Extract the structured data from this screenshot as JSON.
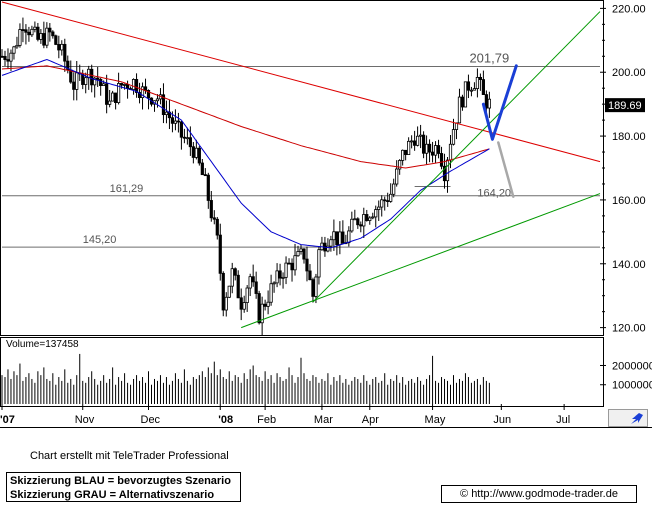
{
  "chart_data": {
    "type": "candlestick",
    "price_axis": {
      "ticks": [
        220,
        200,
        180,
        160,
        140,
        120
      ],
      "tick_labels": [
        "220.00",
        "200.00",
        "180.00",
        "160.00",
        "140.00",
        "120.00"
      ],
      "range": [
        118,
        222
      ],
      "last_price_label": "189.69"
    },
    "volume_axis": {
      "ticks": [
        2000000,
        1000000
      ],
      "tick_labels": [
        "2000000",
        "1000000"
      ],
      "range": [
        0,
        2700000
      ],
      "label": "Volume=137458"
    },
    "x_axis": {
      "labels": [
        "'07",
        "Nov",
        "Dec",
        "'08",
        "Feb",
        "Mar",
        "Apr",
        "May",
        "Jun",
        "Jul"
      ]
    },
    "annotations": [
      {
        "text": "201,79",
        "value": 201.79
      },
      {
        "text": "161,29",
        "value": 161.29
      },
      {
        "text": "145,20",
        "value": 145.2
      },
      {
        "text": "164,20",
        "value": 164.2
      }
    ],
    "horizontal_lines": [
      201.79,
      161.29,
      145.2,
      164.2
    ],
    "price_series_anchors": [
      {
        "x": 0,
        "y": 205
      },
      {
        "x": 4,
        "y": 207
      },
      {
        "x": 7,
        "y": 216
      },
      {
        "x": 12,
        "y": 210
      },
      {
        "x": 16,
        "y": 212
      },
      {
        "x": 20,
        "y": 206
      },
      {
        "x": 24,
        "y": 196
      },
      {
        "x": 28,
        "y": 200
      },
      {
        "x": 32,
        "y": 198
      },
      {
        "x": 36,
        "y": 190
      },
      {
        "x": 40,
        "y": 196
      },
      {
        "x": 44,
        "y": 197
      },
      {
        "x": 48,
        "y": 193
      },
      {
        "x": 52,
        "y": 192
      },
      {
        "x": 56,
        "y": 186
      },
      {
        "x": 60,
        "y": 180
      },
      {
        "x": 64,
        "y": 176
      },
      {
        "x": 68,
        "y": 165
      },
      {
        "x": 72,
        "y": 147
      },
      {
        "x": 74,
        "y": 128
      },
      {
        "x": 77,
        "y": 137
      },
      {
        "x": 80,
        "y": 128
      },
      {
        "x": 83,
        "y": 136
      },
      {
        "x": 86,
        "y": 124
      },
      {
        "x": 90,
        "y": 132
      },
      {
        "x": 94,
        "y": 138
      },
      {
        "x": 98,
        "y": 141
      },
      {
        "x": 101,
        "y": 143
      },
      {
        "x": 104,
        "y": 130
      },
      {
        "x": 106,
        "y": 144
      },
      {
        "x": 110,
        "y": 150
      },
      {
        "x": 114,
        "y": 146
      },
      {
        "x": 118,
        "y": 153
      },
      {
        "x": 122,
        "y": 156
      },
      {
        "x": 126,
        "y": 158
      },
      {
        "x": 130,
        "y": 162
      },
      {
        "x": 134,
        "y": 174
      },
      {
        "x": 138,
        "y": 180
      },
      {
        "x": 142,
        "y": 175
      },
      {
        "x": 146,
        "y": 177
      },
      {
        "x": 148,
        "y": 169
      },
      {
        "x": 150,
        "y": 179
      },
      {
        "x": 153,
        "y": 190
      },
      {
        "x": 156,
        "y": 196
      },
      {
        "x": 159,
        "y": 198
      },
      {
        "x": 161,
        "y": 192
      },
      {
        "x": 163,
        "y": 190
      }
    ],
    "moving_averages": [
      {
        "name": "MA-red",
        "color": "#cc0000",
        "anchors": [
          {
            "x": 0,
            "y": 201
          },
          {
            "x": 15,
            "y": 202
          },
          {
            "x": 40,
            "y": 197
          },
          {
            "x": 60,
            "y": 190
          },
          {
            "x": 80,
            "y": 183
          },
          {
            "x": 100,
            "y": 177
          },
          {
            "x": 120,
            "y": 172
          },
          {
            "x": 135,
            "y": 170
          },
          {
            "x": 148,
            "y": 172
          },
          {
            "x": 163,
            "y": 176
          }
        ]
      },
      {
        "name": "MA-blue",
        "color": "#0000cc",
        "anchors": [
          {
            "x": 0,
            "y": 199
          },
          {
            "x": 15,
            "y": 204
          },
          {
            "x": 30,
            "y": 198
          },
          {
            "x": 45,
            "y": 194
          },
          {
            "x": 60,
            "y": 185
          },
          {
            "x": 70,
            "y": 172
          },
          {
            "x": 80,
            "y": 159
          },
          {
            "x": 90,
            "y": 150
          },
          {
            "x": 100,
            "y": 146
          },
          {
            "x": 110,
            "y": 145
          },
          {
            "x": 120,
            "y": 148
          },
          {
            "x": 130,
            "y": 154
          },
          {
            "x": 140,
            "y": 163
          },
          {
            "x": 150,
            "y": 169
          },
          {
            "x": 163,
            "y": 176
          }
        ]
      }
    ],
    "trendlines": [
      {
        "color": "#dd0000",
        "from": {
          "x": 0,
          "y": 222
        },
        "to": {
          "x": 200,
          "y": 172
        }
      },
      {
        "color": "#009900",
        "from": {
          "x": 80,
          "y": 120
        },
        "to": {
          "x": 200,
          "y": 162
        }
      },
      {
        "color": "#009900",
        "from": {
          "x": 104,
          "y": 128
        },
        "to": {
          "x": 200,
          "y": 219
        }
      }
    ],
    "scenarios": [
      {
        "color": "#1a3fd6",
        "points": [
          {
            "x": 161,
            "y": 190
          },
          {
            "x": 164,
            "y": 179
          },
          {
            "x": 172,
            "y": 202
          }
        ]
      },
      {
        "color": "#a8a8a8",
        "points": [
          {
            "x": 166,
            "y": 178
          },
          {
            "x": 171,
            "y": 161
          }
        ]
      }
    ]
  },
  "volume_bars": [
    1.5,
    1.4,
    1.8,
    1.3,
    1.7,
    1.5,
    2.1,
    1.2,
    1.4,
    1.6,
    1.3,
    1.1,
    1.7,
    1.5,
    1.9,
    1.3,
    1.2,
    1.6,
    1.0,
    1.4,
    1.2,
    1.8,
    1.1,
    1.3,
    1.0,
    1.5,
    2.6,
    1.2,
    1.1,
    1.4,
    1.7,
    1.3,
    1.0,
    1.2,
    1.5,
    1.1,
    1.3,
    1.9,
    1.0,
    1.4,
    1.2,
    1.6,
    1.1,
    1.0,
    1.3,
    1.5,
    1.2,
    1.4,
    1.1,
    1.7,
    1.0,
    1.3,
    1.2,
    1.5,
    1.1,
    1.4,
    1.0,
    1.2,
    1.6,
    1.3,
    1.1,
    1.8,
    1.2,
    1.0,
    1.4,
    1.3,
    1.5,
    1.7,
    1.4,
    1.9,
    1.6,
    2.2,
    1.5,
    1.8,
    1.4,
    1.3,
    1.7,
    1.2,
    1.5,
    1.4,
    1.1,
    1.6,
    1.3,
    1.8,
    2.0,
    1.5,
    1.4,
    1.2,
    1.7,
    1.3,
    1.5,
    1.1,
    1.6,
    1.4,
    1.2,
    1.3,
    1.9,
    1.5,
    1.1,
    1.4,
    2.4,
    1.6,
    1.3,
    1.2,
    1.5,
    1.4,
    1.1,
    1.3,
    1.2,
    1.6,
    1.0,
    1.4,
    1.2,
    1.5,
    1.1,
    1.3,
    1.0,
    1.2,
    1.4,
    1.3,
    1.1,
    1.5,
    1.2,
    1.0,
    1.3,
    1.4,
    1.1,
    1.2,
    1.6,
    1.0,
    1.3,
    1.2,
    1.5,
    1.1,
    1.4,
    1.0,
    1.2,
    1.3,
    1.1,
    1.4,
    1.2,
    1.0,
    1.3,
    1.5,
    2.5,
    1.2,
    1.1,
    1.4,
    1.3,
    1.2,
    1.0,
    1.5,
    1.1,
    1.3,
    1.2,
    1.6,
    1.4,
    1.1,
    1.2,
    1.3,
    1.0,
    1.4,
    1.2,
    1.1
  ],
  "footer": {
    "credit": "Chart erstellt mit TeleTrader Professional",
    "legend_blue": "Skizzierung BLAU = bevorzugtes Szenario",
    "legend_grey": "Skizzierung GRAU = Alternativszenario",
    "url": "© http://www.godmode-trader.de"
  },
  "colors": {
    "price": "#000000",
    "axis": "#000000",
    "tick_grid": "#7a7a7a"
  }
}
